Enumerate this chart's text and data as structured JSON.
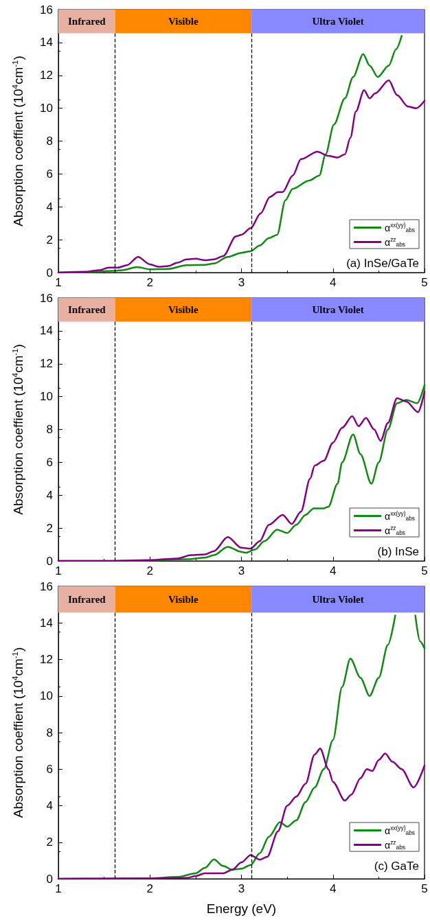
{
  "chart_data": [
    {
      "type": "line",
      "ylabel": "Absorption coeffient (10$^{4}$cm$^{-1}$)",
      "xlim": [
        1,
        5
      ],
      "xticks": [
        1,
        2,
        3,
        4,
        5
      ],
      "ylim": [
        0,
        16
      ],
      "yticks": [
        0,
        2,
        4,
        6,
        8,
        10,
        12,
        14,
        16
      ],
      "grid": false,
      "legend": "bottom right",
      "marker": "none",
      "line_style": "solid",
      "annotations": [
        "(a) InSe/GaTe"
      ],
      "bands": [
        {
          "axis": "x",
          "from": 1,
          "to": 1.62,
          "label": "Infrared",
          "color": "#e8b0a0"
        },
        {
          "axis": "x",
          "from": 1.62,
          "to": 3.11,
          "label": "Visible",
          "color": "#ff8800"
        },
        {
          "axis": "x",
          "from": 3.11,
          "to": 5,
          "label": "Ultra Violet",
          "color": "#8888ff"
        }
      ],
      "ref_lines": [
        {
          "axis": "x",
          "value": 1.62,
          "line_style": "dashed",
          "color": "#000000"
        },
        {
          "axis": "x",
          "value": 3.11,
          "line_style": "dashed",
          "color": "#000000"
        }
      ],
      "series": [
        {
          "name": "α$^{xx(yy)}$$_{abs}$",
          "color": "#118811",
          "x": [
            1,
            1.3,
            1.6,
            1.7,
            1.86,
            2,
            2.2,
            2.4,
            2.6,
            2.7,
            2.85,
            3,
            3.1,
            3.2,
            3.3,
            3.39,
            3.48,
            3.56,
            3.74,
            3.85,
            3.92,
            4.01,
            4.13,
            4.22,
            4.33,
            4.4,
            4.49,
            4.61,
            4.69,
            4.75
          ],
          "values": [
            0,
            0.02,
            0.1,
            0.15,
            0.33,
            0.2,
            0.22,
            0.45,
            0.47,
            0.55,
            0.95,
            1.2,
            1.3,
            1.65,
            2.1,
            2.3,
            4.4,
            5.1,
            5.6,
            5.9,
            7.2,
            9,
            10.6,
            11.9,
            13.3,
            12.6,
            11.9,
            12.6,
            13.6,
            14.4
          ]
        },
        {
          "name": "α$^{zz}$$_{abs}$",
          "color": "#800080",
          "x": [
            1,
            1.3,
            1.45,
            1.55,
            1.65,
            1.75,
            1.87,
            2,
            2.1,
            2.2,
            2.3,
            2.4,
            2.5,
            2.6,
            2.7,
            2.8,
            2.94,
            3,
            3.1,
            3.21,
            3.31,
            3.4,
            3.45,
            3.56,
            3.65,
            3.83,
            3.95,
            4.05,
            4.13,
            4.19,
            4.25,
            4.34,
            4.4,
            4.46,
            4.61,
            4.7,
            4.82,
            4.91,
            5
          ],
          "values": [
            0,
            0.05,
            0.15,
            0.3,
            0.3,
            0.45,
            0.95,
            0.5,
            0.35,
            0.4,
            0.6,
            0.8,
            0.85,
            0.75,
            0.8,
            1,
            2.2,
            2.3,
            2.7,
            3.6,
            4.6,
            4.9,
            4.9,
            5.9,
            6.9,
            7.35,
            7.1,
            7,
            7.2,
            8.2,
            9.8,
            11.1,
            10.6,
            10.9,
            11.7,
            10.8,
            10.1,
            10,
            10.45
          ]
        }
      ]
    },
    {
      "type": "line",
      "ylabel": "Absorption coeffient (10$^{4}$cm$^{-1}$)",
      "xlim": [
        1,
        5
      ],
      "xticks": [
        1,
        2,
        3,
        4,
        5
      ],
      "ylim": [
        0,
        16
      ],
      "yticks": [
        0,
        2,
        4,
        6,
        8,
        10,
        12,
        14,
        16
      ],
      "grid": false,
      "legend": "bottom right",
      "marker": "none",
      "line_style": "solid",
      "annotations": [
        "(b) InSe"
      ],
      "bands": [
        {
          "axis": "x",
          "from": 1,
          "to": 1.62,
          "label": "Infrared",
          "color": "#e8b0a0"
        },
        {
          "axis": "x",
          "from": 1.62,
          "to": 3.11,
          "label": "Visible",
          "color": "#ff8800"
        },
        {
          "axis": "x",
          "from": 3.11,
          "to": 5,
          "label": "Ultra Violet",
          "color": "#8888ff"
        }
      ],
      "ref_lines": [
        {
          "axis": "x",
          "value": 1.62,
          "line_style": "dashed",
          "color": "#000000"
        },
        {
          "axis": "x",
          "value": 3.11,
          "line_style": "dashed",
          "color": "#000000"
        }
      ],
      "series": [
        {
          "name": "α$^{xx(yy)}$$_{abs}$",
          "color": "#118811",
          "x": [
            1,
            1.5,
            2,
            2.4,
            2.6,
            2.7,
            2.85,
            3,
            3.05,
            3.15,
            3.25,
            3.39,
            3.5,
            3.6,
            3.7,
            3.79,
            3.9,
            3.95,
            4.05,
            4.1,
            4.22,
            4.3,
            4.42,
            4.5,
            4.6,
            4.7,
            4.8,
            4.92,
            5
          ],
          "values": [
            0,
            0,
            0.03,
            0.1,
            0.2,
            0.35,
            0.86,
            0.55,
            0.5,
            0.7,
            1.2,
            1.9,
            1.7,
            2.2,
            2.8,
            3.2,
            3.2,
            3.3,
            4.7,
            6,
            7.7,
            6.5,
            4.7,
            6,
            8,
            9.6,
            9.8,
            9.6,
            10.7
          ]
        },
        {
          "name": "α$^{zz}$$_{abs}$",
          "color": "#800080",
          "x": [
            1,
            1.5,
            2,
            2.3,
            2.45,
            2.6,
            2.7,
            2.85,
            3,
            3.1,
            3.2,
            3.3,
            3.45,
            3.55,
            3.65,
            3.75,
            3.8,
            3.9,
            4,
            4.1,
            4.21,
            4.28,
            4.36,
            4.45,
            4.52,
            4.6,
            4.7,
            4.8,
            4.93,
            5
          ],
          "values": [
            0,
            0,
            0.05,
            0.15,
            0.35,
            0.4,
            0.6,
            1.45,
            0.8,
            0.75,
            1.2,
            2.2,
            2.8,
            2.25,
            3,
            5,
            5.8,
            6.1,
            7.2,
            8.1,
            8.8,
            8.2,
            8.7,
            8,
            7.3,
            8.4,
            9.9,
            9.7,
            9.05,
            10.3
          ]
        }
      ]
    },
    {
      "type": "line",
      "xlabel": "Energy (eV)",
      "ylabel": "Absorption coeffient (10$^{4}$cm$^{-1}$)",
      "xlim": [
        1,
        5
      ],
      "xticks": [
        1,
        2,
        3,
        4,
        5
      ],
      "ylim": [
        0,
        16
      ],
      "yticks": [
        0,
        2,
        4,
        6,
        8,
        10,
        12,
        14,
        16
      ],
      "grid": false,
      "legend": "bottom right",
      "marker": "none",
      "line_style": "solid",
      "annotations": [
        "(c) GaTe"
      ],
      "bands": [
        {
          "axis": "x",
          "from": 1,
          "to": 1.62,
          "label": "Infrared",
          "color": "#e8b0a0"
        },
        {
          "axis": "x",
          "from": 1.62,
          "to": 3.11,
          "label": "Visible",
          "color": "#ff8800"
        },
        {
          "axis": "x",
          "from": 3.11,
          "to": 5,
          "label": "Ultra Violet",
          "color": "#8888ff"
        }
      ],
      "ref_lines": [
        {
          "axis": "x",
          "value": 1.62,
          "line_style": "dashed",
          "color": "#000000"
        },
        {
          "axis": "x",
          "value": 3.11,
          "line_style": "dashed",
          "color": "#000000"
        }
      ],
      "series": [
        {
          "name": "α$^{xx(yy)}$$_{abs}$",
          "color": "#118811",
          "x": [
            1,
            1.5,
            2,
            2.3,
            2.5,
            2.6,
            2.7,
            2.8,
            2.9,
            3,
            3.1,
            3.2,
            3.3,
            3.42,
            3.5,
            3.6,
            3.7,
            3.8,
            3.9,
            4,
            4.1,
            4.19,
            4.3,
            4.4,
            4.5,
            4.6,
            4.68,
            4.8,
            4.9,
            4.95,
            5
          ],
          "values": [
            0,
            0.01,
            0.03,
            0.1,
            0.3,
            0.6,
            1.06,
            0.7,
            0.5,
            0.55,
            0.75,
            1.4,
            2.3,
            3.1,
            2.85,
            3.2,
            4.2,
            5,
            6,
            7.6,
            10.5,
            12.05,
            11,
            10,
            11,
            12.8,
            14.4,
            null,
            14.4,
            13,
            12.6
          ]
        },
        {
          "name": "α$^{zz}$$_{abs}$",
          "color": "#800080",
          "x": [
            1,
            1.5,
            2,
            2.4,
            2.5,
            2.6,
            2.8,
            2.9,
            3,
            3.1,
            3.2,
            3.28,
            3.4,
            3.5,
            3.6,
            3.7,
            3.8,
            3.86,
            3.95,
            4,
            4.13,
            4.2,
            4.3,
            4.37,
            4.43,
            4.5,
            4.57,
            4.65,
            4.75,
            4.88,
            5
          ],
          "values": [
            0,
            0.01,
            0.02,
            0.05,
            0.15,
            0.3,
            0.3,
            0.5,
            0.9,
            1.3,
            1.05,
            1.2,
            2.6,
            4,
            4.5,
            5.2,
            6.8,
            7.13,
            6,
            5.3,
            4.28,
            4.6,
            5.5,
            6,
            5.9,
            6.5,
            6.85,
            6.4,
            6,
            5,
            6.2
          ]
        }
      ]
    }
  ]
}
